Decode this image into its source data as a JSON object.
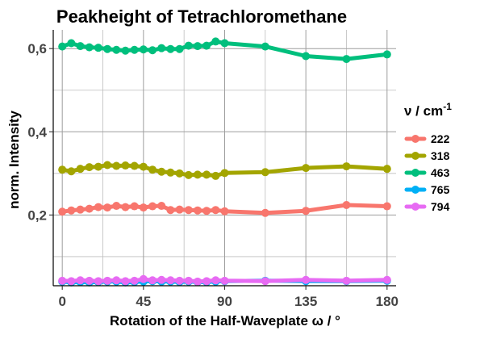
{
  "chart_data": {
    "type": "line",
    "title": "Peakheight of Tetrachloromethane",
    "xlabel": "Rotation of the Half-Waveplate ω / °",
    "ylabel": "norm. Intensity",
    "legend_title": "ν / cm",
    "legend_title_superscript": "-1",
    "legend_position": "right",
    "grid": true,
    "xlim": [
      -5,
      185
    ],
    "ylim": [
      0.03,
      0.645
    ],
    "x_ticks": [
      0,
      45,
      90,
      135,
      180
    ],
    "x_tick_labels": [
      "0",
      "45",
      "90",
      "135",
      "180"
    ],
    "y_ticks": [
      0.2,
      0.4,
      0.6
    ],
    "y_tick_labels": [
      "0,2",
      "0,4",
      "0,6"
    ],
    "x": [
      0,
      5,
      10,
      15,
      20,
      25,
      30,
      35,
      40,
      45,
      50,
      55,
      60,
      65,
      70,
      75,
      80,
      85,
      90,
      112.5,
      135,
      157.5,
      180
    ],
    "series": [
      {
        "name": "222",
        "color": "#F8766D",
        "values": [
          0.208,
          0.211,
          0.213,
          0.215,
          0.219,
          0.218,
          0.222,
          0.219,
          0.221,
          0.218,
          0.221,
          0.222,
          0.212,
          0.213,
          0.212,
          0.211,
          0.21,
          0.212,
          0.209,
          0.205,
          0.21,
          0.224,
          0.221
        ]
      },
      {
        "name": "318",
        "color": "#A3A500",
        "values": [
          0.309,
          0.305,
          0.311,
          0.315,
          0.316,
          0.32,
          0.318,
          0.319,
          0.318,
          0.316,
          0.309,
          0.304,
          0.302,
          0.3,
          0.296,
          0.297,
          0.297,
          0.294,
          0.301,
          0.303,
          0.313,
          0.317,
          0.311
        ]
      },
      {
        "name": "463",
        "color": "#00BF7D",
        "values": [
          0.605,
          0.613,
          0.606,
          0.603,
          0.602,
          0.599,
          0.597,
          0.595,
          0.597,
          0.598,
          0.596,
          0.601,
          0.599,
          0.599,
          0.607,
          0.606,
          0.607,
          0.617,
          0.613,
          0.605,
          0.582,
          0.575,
          0.586
        ]
      },
      {
        "name": "765",
        "color": "#00B0F6",
        "values": [
          0.04,
          0.038,
          0.039,
          0.038,
          0.039,
          0.04,
          0.04,
          0.038,
          0.039,
          0.04,
          0.041,
          0.04,
          0.04,
          0.039,
          0.04,
          0.039,
          0.039,
          0.04,
          0.041,
          0.042,
          0.041,
          0.041,
          0.042
        ]
      },
      {
        "name": "794",
        "color": "#E76BF3",
        "values": [
          0.042,
          0.041,
          0.043,
          0.042,
          0.041,
          0.042,
          0.043,
          0.041,
          0.042,
          0.046,
          0.043,
          0.044,
          0.043,
          0.042,
          0.042,
          0.04,
          0.041,
          0.043,
          0.042,
          0.041,
          0.044,
          0.042,
          0.044
        ]
      }
    ]
  }
}
